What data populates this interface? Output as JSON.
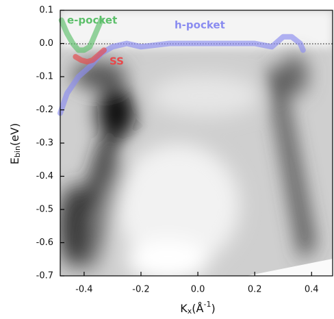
{
  "chart_data": {
    "type": "line",
    "x_label": [
      "K",
      "x",
      "(Å",
      "-1",
      ")"
    ],
    "y_label": [
      "E",
      "bin",
      "(eV)"
    ],
    "xlim": [
      -0.484,
      0.474
    ],
    "ylim": [
      -0.7,
      0.1
    ],
    "xticks": [
      -0.4,
      -0.2,
      {
        "value": 0,
        "label": "0.0"
      },
      0.2,
      0.4
    ],
    "yticks": [
      0.1,
      {
        "value": 0,
        "label": "0.0"
      },
      -0.1,
      -0.2,
      -0.3,
      -0.4,
      -0.5,
      -0.6,
      -0.7
    ],
    "series": [
      {
        "name": "e-pocket",
        "color": "#5cbf6a",
        "x": [
          -0.48,
          -0.46,
          -0.44,
          -0.42,
          -0.4,
          -0.38,
          -0.36,
          -0.34
        ],
        "values": [
          0.07,
          0.03,
          0.0,
          -0.02,
          -0.02,
          -0.01,
          0.03,
          0.07
        ]
      },
      {
        "name": "h-pocket",
        "color": "#8a8cf0",
        "x": [
          -0.484,
          -0.46,
          -0.42,
          -0.38,
          -0.34,
          -0.3,
          -0.25,
          -0.2,
          -0.1,
          0.0,
          0.1,
          0.2,
          0.26,
          0.3,
          0.33,
          0.36,
          0.37
        ],
        "values": [
          -0.21,
          -0.15,
          -0.1,
          -0.07,
          -0.03,
          -0.01,
          0.0,
          -0.01,
          0.0,
          0.0,
          0.0,
          0.0,
          -0.01,
          0.02,
          0.02,
          0.0,
          -0.02
        ]
      },
      {
        "name": "SS",
        "color": "#e8484a",
        "x": [
          -0.43,
          -0.41,
          -0.39,
          -0.37,
          -0.35,
          -0.33
        ],
        "values": [
          -0.04,
          -0.05,
          -0.055,
          -0.05,
          -0.035,
          -0.02
        ]
      }
    ]
  }
}
